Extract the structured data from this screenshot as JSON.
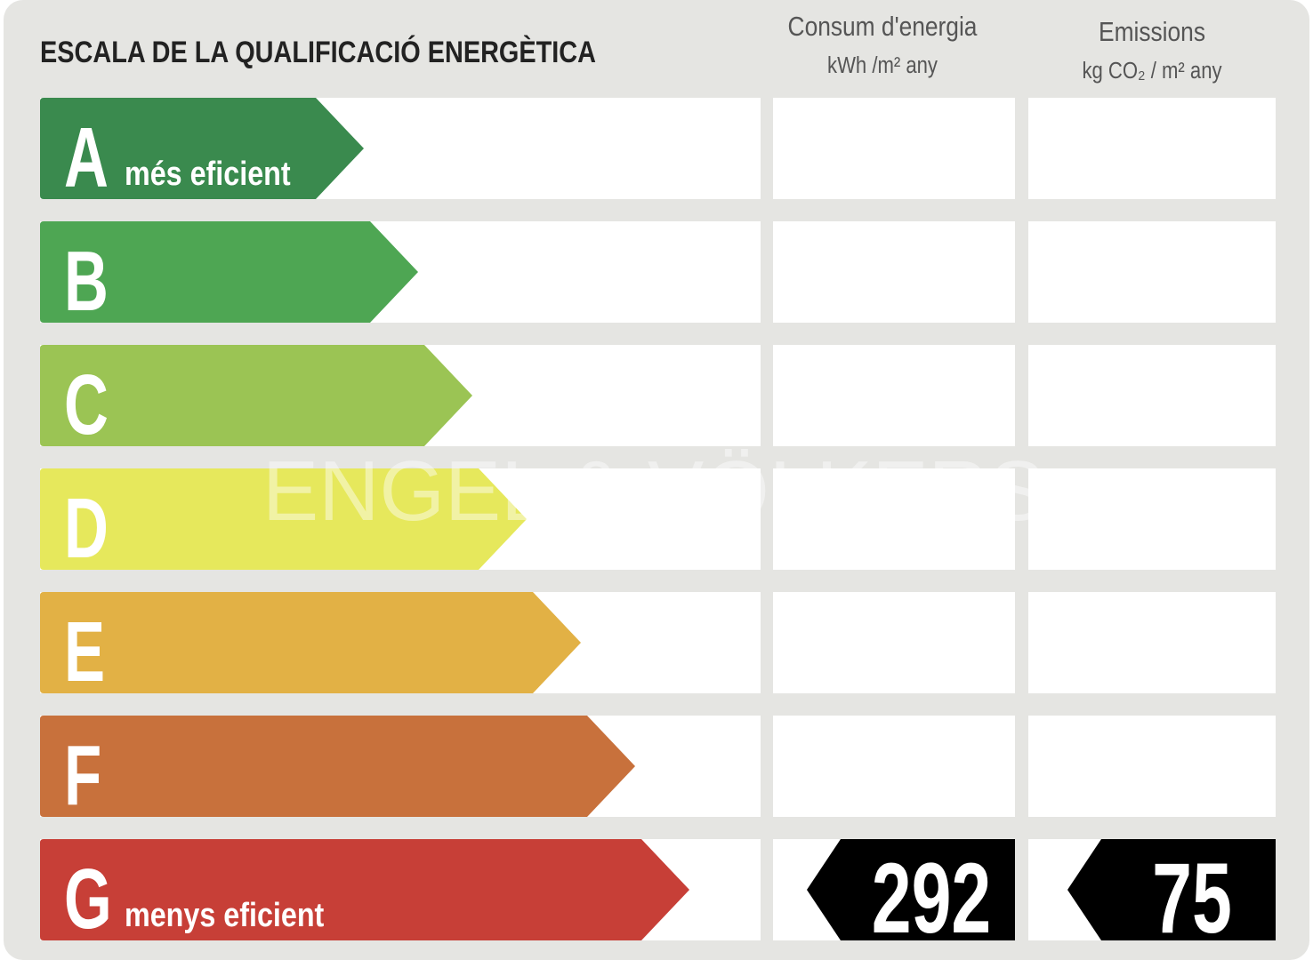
{
  "title": "ESCALA DE LA QUALIFICACIÓ ENERGÈTICA",
  "columns": [
    {
      "title": "Consum d'energia",
      "unit": "kWh /m² any",
      "rating": "292"
    },
    {
      "title": "Emissions",
      "unit": "kg CO₂ / m² any",
      "rating": "75"
    }
  ],
  "rows": [
    {
      "letter": "A",
      "color": "#3a8a4e",
      "label": "més eficient"
    },
    {
      "letter": "B",
      "color": "#4ea653"
    },
    {
      "letter": "C",
      "color": "#9bc454"
    },
    {
      "letter": "D",
      "color": "#e6e85c"
    },
    {
      "letter": "E",
      "color": "#e2b145"
    },
    {
      "letter": "F",
      "color": "#c8713c"
    },
    {
      "letter": "G",
      "color": "#c73f37",
      "label": "menys eficient"
    }
  ],
  "watermark": "ENGEL & VÖLKERS"
}
